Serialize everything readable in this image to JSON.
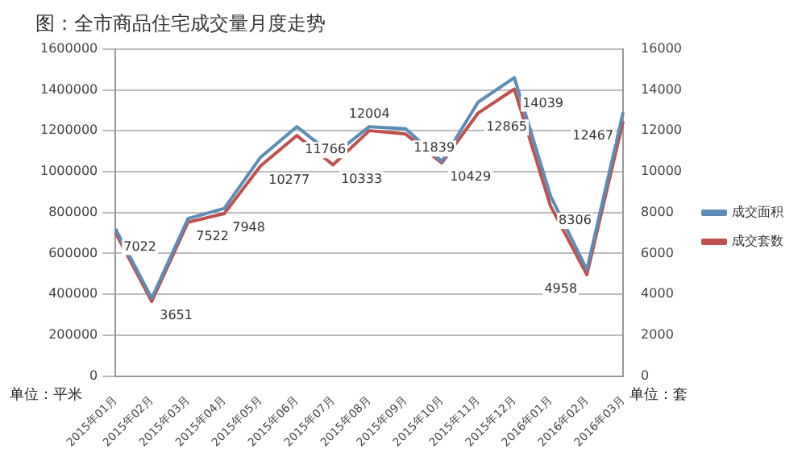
{
  "chart_data": {
    "type": "line",
    "title": "图：全市商品住宅成交量月度走势",
    "categories": [
      "2015年01月",
      "2015年02月",
      "2015年03月",
      "2015年04月",
      "2015年05月",
      "2015年06月",
      "2015年07月",
      "2015年08月",
      "2015年09月",
      "2015年10月",
      "2015年11月",
      "2015年12月",
      "2016年01月",
      "2016年02月",
      "2016年03月"
    ],
    "series": [
      {
        "name": "成交面积",
        "color": "#5b8db8",
        "values": [
          720000,
          380000,
          770000,
          820000,
          1070000,
          1220000,
          1080000,
          1220000,
          1210000,
          1050000,
          1340000,
          1460000,
          880000,
          520000,
          1290000
        ]
      },
      {
        "name": "成交套数",
        "color": "#c0504d",
        "axis": "y2",
        "values": [
          7022,
          3651,
          7522,
          7948,
          10277,
          11766,
          10333,
          12004,
          11839,
          10429,
          12865,
          14039,
          8306,
          4958,
          12467
        ],
        "value_labels": [
          "7022",
          "3651",
          "7522",
          "7948",
          "10277",
          "11766",
          "10333",
          "12004",
          "11839",
          "10429",
          "12865",
          "14039",
          "8306",
          "4958",
          "12467"
        ]
      }
    ],
    "ylim": [
      0,
      1600000
    ],
    "yticks": [
      0,
      200000,
      400000,
      600000,
      800000,
      1000000,
      1200000,
      1400000,
      1600000
    ],
    "y2lim": [
      0,
      16000
    ],
    "y2ticks": [
      0,
      2000,
      4000,
      6000,
      8000,
      10000,
      12000,
      14000,
      16000
    ],
    "annotations": [
      "单位：平米",
      "单位：套"
    ],
    "grid": "y",
    "legend": "right",
    "marker": "none",
    "line_style": "solid"
  }
}
